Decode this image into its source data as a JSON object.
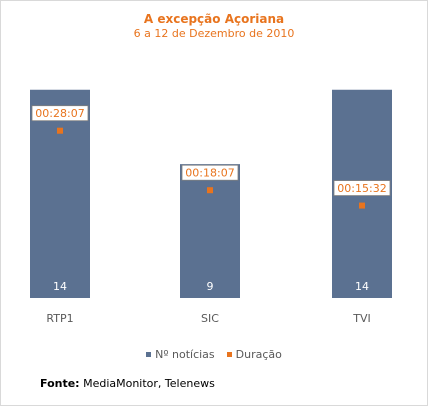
{
  "chart_data": {
    "type": "bar",
    "title": "A excepção Açoriana",
    "subtitle": "6 a 12 de Dezembro de 2010",
    "categories": [
      "RTP1",
      "SIC",
      "TVI"
    ],
    "series": [
      {
        "name": "Nº notícias",
        "kind": "bar",
        "values": [
          14,
          9,
          14
        ],
        "color": "#5b7191"
      },
      {
        "name": "Duração",
        "kind": "point",
        "values": [
          "00:28:07",
          "00:18:07",
          "00:15:32"
        ],
        "color": "#e8741e"
      }
    ],
    "bar_ylim": [
      0,
      16
    ],
    "duration_ylim_seconds": [
      0,
      2400
    ],
    "grid": false,
    "legend_position": "bottom"
  },
  "source": {
    "label": "Fonte:",
    "text": " MediaMonitor, Telenews"
  }
}
